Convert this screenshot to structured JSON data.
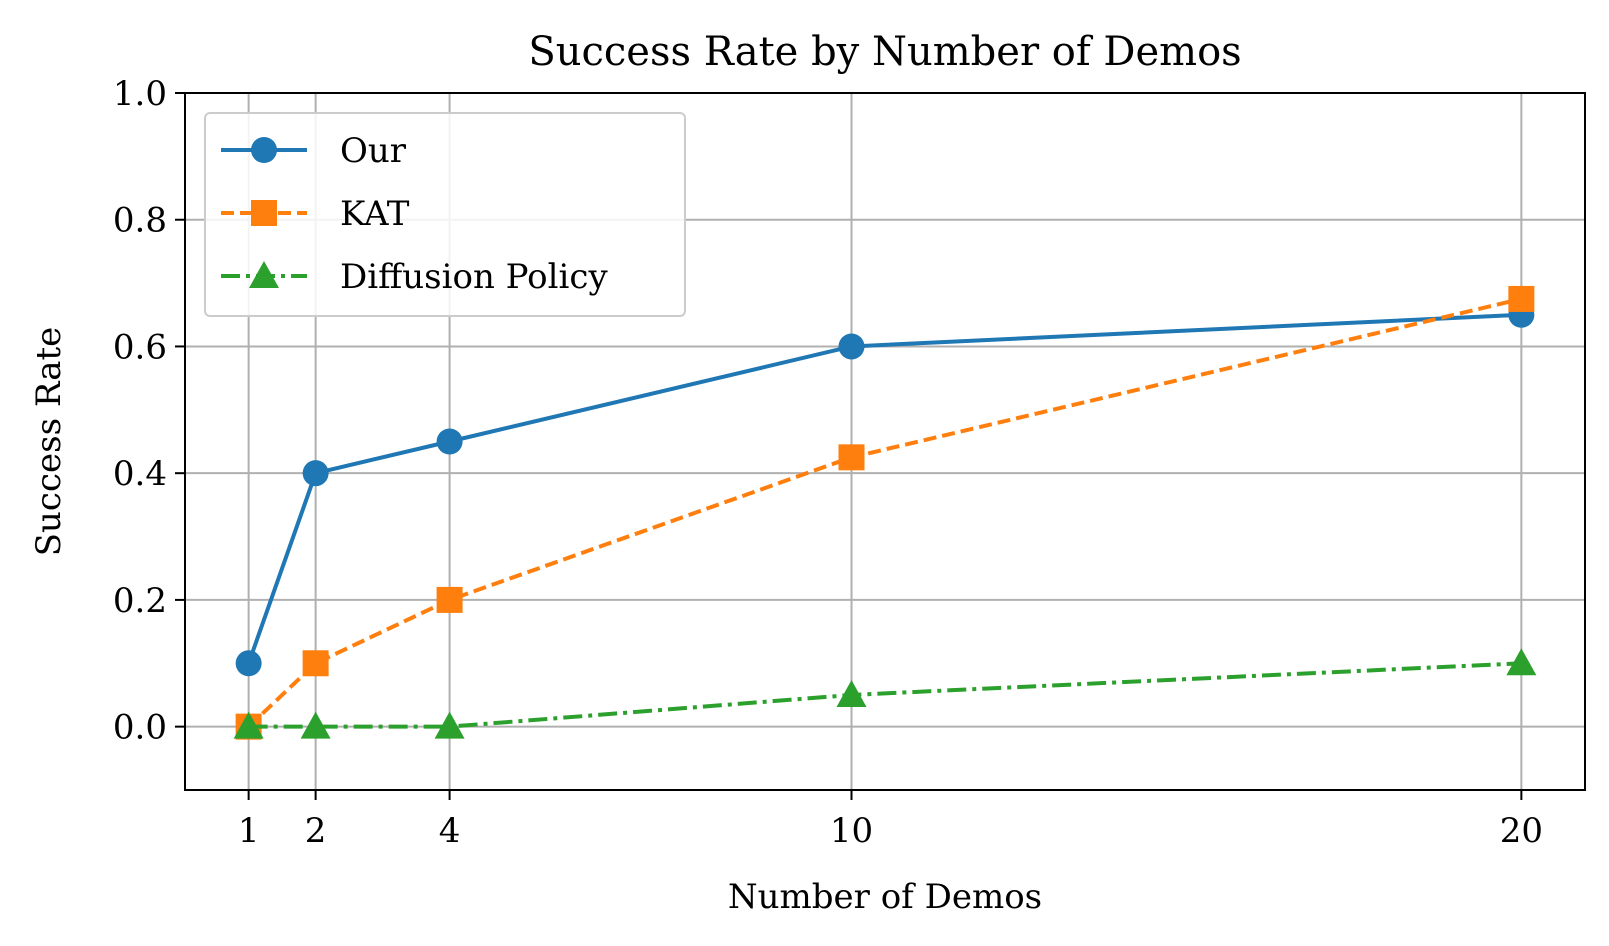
{
  "chart_data": {
    "type": "line",
    "title": "Success Rate by Number of Demos",
    "xlabel": "Number of Demos",
    "ylabel": "Success Rate",
    "xlim": [
      0.05,
      20.95
    ],
    "ylim": [
      -0.1,
      1.0
    ],
    "xticks": [
      1,
      2,
      4,
      10,
      20
    ],
    "yticks": [
      0.0,
      0.2,
      0.4,
      0.6,
      0.8,
      1.0
    ],
    "ytick_labels": [
      "0.0",
      "0.2",
      "0.4",
      "0.6",
      "0.8",
      "1.0"
    ],
    "grid": true,
    "legend_position": "top-left",
    "x": [
      1,
      2,
      4,
      10,
      20
    ],
    "series": [
      {
        "name": "Our",
        "values": [
          0.1,
          0.4,
          0.45,
          0.6,
          0.65
        ],
        "color": "#1f77b4",
        "marker": "circle",
        "linestyle": "solid"
      },
      {
        "name": "KAT",
        "values": [
          0.0,
          0.1,
          0.2,
          0.425,
          0.675
        ],
        "color": "#ff7f0e",
        "marker": "square",
        "linestyle": "dashed"
      },
      {
        "name": "Diffusion Policy",
        "values": [
          0.0,
          0.0,
          0.0,
          0.05,
          0.1
        ],
        "color": "#2ca02c",
        "marker": "triangle",
        "linestyle": "dashdot"
      }
    ]
  }
}
